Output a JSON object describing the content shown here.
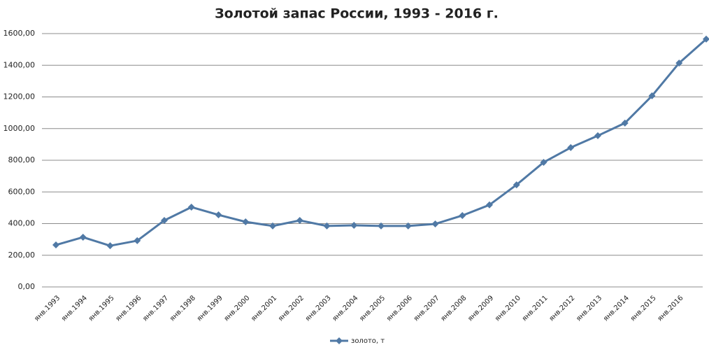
{
  "chart_data": {
    "type": "line",
    "title": "Золотой запас России, 1993 - 2016 г.",
    "categories": [
      "янв.1993",
      "янв.1994",
      "янв.1995",
      "янв.1996",
      "янв.1997",
      "янв.1998",
      "янв.1999",
      "янв.2000",
      "янв.2001",
      "янв.2002",
      "янв.2003",
      "янв.2004",
      "янв.2005",
      "янв.2006",
      "янв.2007",
      "янв.2008",
      "янв.2009",
      "янв.2010",
      "янв.2011",
      "янв.2012",
      "янв.2013",
      "янв.2014",
      "янв.2015",
      "янв.2016",
      null
    ],
    "series": [
      {
        "name": "золото, т",
        "color": "#5079a5",
        "values": [
          265,
          314,
          260,
          292,
          420,
          504,
          455,
          411,
          385,
          420,
          385,
          389,
          385,
          385,
          398,
          451,
          518,
          645,
          787,
          880,
          955,
          1035,
          1207,
          1414,
          1565
        ]
      }
    ],
    "ylim": [
      0,
      1600
    ],
    "yticks": [
      {
        "value": 0,
        "label": "0,00"
      },
      {
        "value": 200,
        "label": "200,00"
      },
      {
        "value": 400,
        "label": "400,00"
      },
      {
        "value": 600,
        "label": "600,00"
      },
      {
        "value": 800,
        "label": "800,00"
      },
      {
        "value": 1000,
        "label": "1000,00"
      },
      {
        "value": 1200,
        "label": "1200,00"
      },
      {
        "value": 1400,
        "label": "1400,00"
      },
      {
        "value": 1600,
        "label": "1600,00"
      }
    ],
    "grid": true,
    "legend": "bottom"
  }
}
